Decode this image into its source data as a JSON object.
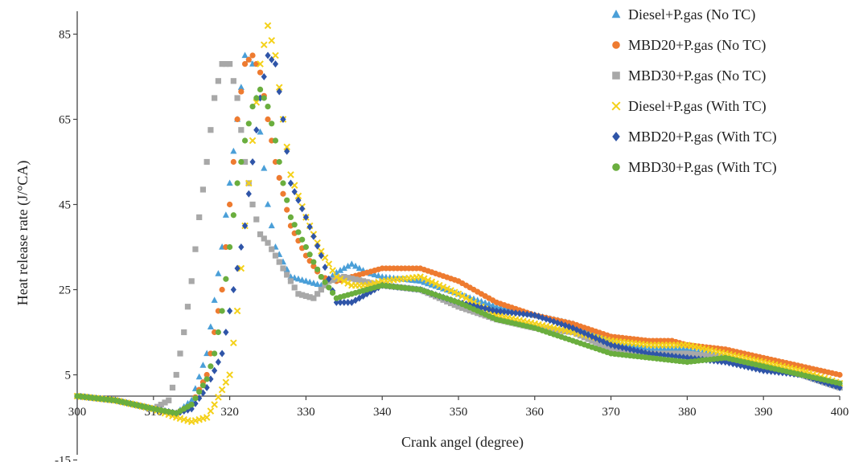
{
  "chart_data": {
    "type": "scatter",
    "xlabel": "Crank angel (degree)",
    "ylabel": "Heat release rate (J/°CA)",
    "xlim": [
      300,
      400
    ],
    "ylim": [
      -15,
      85
    ],
    "x_ticks": [
      300,
      310,
      320,
      330,
      340,
      350,
      360,
      370,
      380,
      390,
      400
    ],
    "y_ticks": [
      -15,
      5,
      25,
      45,
      65,
      85
    ],
    "grid": false,
    "legend_position": "top-right",
    "series": [
      {
        "name": "Diesel+P.gas (No TC)",
        "color": "#4a9fd8",
        "marker": "triangle",
        "points": [
          [
            300,
            0
          ],
          [
            305,
            -1
          ],
          [
            310,
            -3
          ],
          [
            313,
            -4
          ],
          [
            315,
            -1
          ],
          [
            317,
            10
          ],
          [
            319,
            35
          ],
          [
            321,
            65
          ],
          [
            322,
            80
          ],
          [
            323,
            78
          ],
          [
            324,
            62
          ],
          [
            325,
            45
          ],
          [
            326,
            35
          ],
          [
            328,
            28
          ],
          [
            330,
            27
          ],
          [
            332,
            26
          ],
          [
            334,
            29
          ],
          [
            336,
            31
          ],
          [
            338,
            29
          ],
          [
            340,
            28
          ],
          [
            345,
            27
          ],
          [
            350,
            24
          ],
          [
            355,
            21
          ],
          [
            360,
            19
          ],
          [
            365,
            17
          ],
          [
            370,
            13
          ],
          [
            375,
            11
          ],
          [
            380,
            11
          ],
          [
            385,
            9
          ],
          [
            390,
            7
          ],
          [
            395,
            5
          ],
          [
            400,
            2
          ]
        ]
      },
      {
        "name": "MBD20+P.gas (No TC)",
        "color": "#ee7b30",
        "marker": "circle",
        "points": [
          [
            300,
            0
          ],
          [
            305,
            -1
          ],
          [
            310,
            -3
          ],
          [
            313,
            -4
          ],
          [
            315,
            -2
          ],
          [
            317,
            5
          ],
          [
            319,
            25
          ],
          [
            320,
            45
          ],
          [
            321,
            65
          ],
          [
            322,
            78
          ],
          [
            323,
            80
          ],
          [
            324,
            76
          ],
          [
            325,
            65
          ],
          [
            326,
            55
          ],
          [
            328,
            40
          ],
          [
            330,
            33
          ],
          [
            332,
            28
          ],
          [
            334,
            27
          ],
          [
            336,
            28
          ],
          [
            338,
            29
          ],
          [
            340,
            30
          ],
          [
            345,
            30
          ],
          [
            350,
            27
          ],
          [
            355,
            22
          ],
          [
            360,
            19
          ],
          [
            365,
            17
          ],
          [
            370,
            14
          ],
          [
            375,
            13
          ],
          [
            378,
            13
          ],
          [
            380,
            12
          ],
          [
            385,
            11
          ],
          [
            390,
            9
          ],
          [
            395,
            7
          ],
          [
            400,
            5
          ]
        ]
      },
      {
        "name": "MBD30+P.gas (No TC)",
        "color": "#a8a8a8",
        "marker": "square",
        "points": [
          [
            300,
            0
          ],
          [
            305,
            -1
          ],
          [
            310,
            -3
          ],
          [
            312,
            -1
          ],
          [
            313,
            5
          ],
          [
            314,
            15
          ],
          [
            315,
            27
          ],
          [
            316,
            42
          ],
          [
            317,
            55
          ],
          [
            318,
            70
          ],
          [
            319,
            78
          ],
          [
            320,
            78
          ],
          [
            321,
            70
          ],
          [
            322,
            55
          ],
          [
            323,
            45
          ],
          [
            324,
            38
          ],
          [
            325,
            36
          ],
          [
            327,
            30
          ],
          [
            329,
            24
          ],
          [
            331,
            23
          ],
          [
            333,
            27
          ],
          [
            335,
            28
          ],
          [
            340,
            26
          ],
          [
            345,
            25
          ],
          [
            350,
            21
          ],
          [
            355,
            18
          ],
          [
            360,
            16
          ],
          [
            365,
            15
          ],
          [
            370,
            11
          ],
          [
            375,
            10
          ],
          [
            380,
            10
          ],
          [
            385,
            9
          ],
          [
            390,
            7
          ],
          [
            395,
            5
          ],
          [
            400,
            2
          ]
        ]
      },
      {
        "name": "Diesel+P.gas (With TC)",
        "color": "#f4d11a",
        "marker": "x",
        "points": [
          [
            300,
            0
          ],
          [
            305,
            -1
          ],
          [
            310,
            -3
          ],
          [
            313,
            -5
          ],
          [
            315,
            -6
          ],
          [
            317,
            -5
          ],
          [
            318,
            -2
          ],
          [
            320,
            5
          ],
          [
            321,
            20
          ],
          [
            322,
            40
          ],
          [
            323,
            60
          ],
          [
            324,
            78
          ],
          [
            325,
            87
          ],
          [
            326,
            80
          ],
          [
            327,
            65
          ],
          [
            328,
            52
          ],
          [
            330,
            42
          ],
          [
            332,
            34
          ],
          [
            334,
            28
          ],
          [
            336,
            26
          ],
          [
            338,
            26
          ],
          [
            340,
            27
          ],
          [
            345,
            28
          ],
          [
            350,
            24
          ],
          [
            355,
            19
          ],
          [
            360,
            17
          ],
          [
            365,
            15
          ],
          [
            370,
            13
          ],
          [
            375,
            12
          ],
          [
            380,
            12
          ],
          [
            385,
            10
          ],
          [
            390,
            8
          ],
          [
            395,
            6
          ],
          [
            400,
            3
          ]
        ]
      },
      {
        "name": "MBD20+P.gas (With TC)",
        "color": "#2f55a8",
        "marker": "diamond",
        "points": [
          [
            300,
            0
          ],
          [
            305,
            -1
          ],
          [
            310,
            -3
          ],
          [
            313,
            -4
          ],
          [
            315,
            -3
          ],
          [
            317,
            2
          ],
          [
            319,
            10
          ],
          [
            320,
            20
          ],
          [
            321,
            30
          ],
          [
            322,
            40
          ],
          [
            323,
            55
          ],
          [
            324,
            70
          ],
          [
            325,
            80
          ],
          [
            326,
            78
          ],
          [
            327,
            65
          ],
          [
            328,
            50
          ],
          [
            330,
            42
          ],
          [
            332,
            33
          ],
          [
            334,
            22
          ],
          [
            336,
            22
          ],
          [
            338,
            24
          ],
          [
            340,
            26
          ],
          [
            345,
            25
          ],
          [
            350,
            22
          ],
          [
            355,
            20
          ],
          [
            360,
            19
          ],
          [
            365,
            16
          ],
          [
            370,
            12
          ],
          [
            375,
            10
          ],
          [
            380,
            9
          ],
          [
            385,
            8
          ],
          [
            390,
            6
          ],
          [
            395,
            5
          ],
          [
            400,
            2
          ]
        ]
      },
      {
        "name": "MBD30+P.gas (With TC)",
        "color": "#6aae3e",
        "marker": "circle",
        "points": [
          [
            300,
            0
          ],
          [
            305,
            -1
          ],
          [
            310,
            -3
          ],
          [
            313,
            -4
          ],
          [
            315,
            -2
          ],
          [
            317,
            4
          ],
          [
            318,
            10
          ],
          [
            319,
            20
          ],
          [
            320,
            35
          ],
          [
            321,
            50
          ],
          [
            322,
            60
          ],
          [
            323,
            68
          ],
          [
            324,
            72
          ],
          [
            325,
            68
          ],
          [
            326,
            60
          ],
          [
            327,
            50
          ],
          [
            328,
            42
          ],
          [
            330,
            35
          ],
          [
            332,
            28
          ],
          [
            334,
            23
          ],
          [
            336,
            24
          ],
          [
            338,
            25
          ],
          [
            340,
            26
          ],
          [
            345,
            25
          ],
          [
            350,
            22
          ],
          [
            355,
            18
          ],
          [
            360,
            16
          ],
          [
            365,
            13
          ],
          [
            370,
            10
          ],
          [
            375,
            9
          ],
          [
            380,
            8
          ],
          [
            385,
            9
          ],
          [
            390,
            7
          ],
          [
            395,
            5
          ],
          [
            400,
            3
          ]
        ]
      }
    ]
  }
}
